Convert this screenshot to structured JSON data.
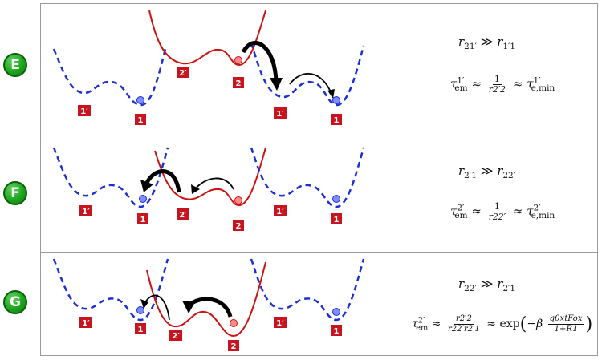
{
  "panels": [
    {
      "label": "E",
      "condition": "r21′ ≫ r1′1",
      "condition_parts": {
        "lhs": "r",
        "lhs_sub": "21′",
        "op": "≫",
        "rhs": "r",
        "rhs_sub": "1′1"
      },
      "tau_sup": "1′",
      "frac_num": "1",
      "frac_den": "r2′2",
      "approx_rhs_sup": "1′",
      "approx_rhs_sub": "e,min",
      "well_labels": [
        "1′",
        "1",
        "2′",
        "2",
        "1′",
        "1"
      ]
    },
    {
      "label": "F",
      "condition_parts": {
        "lhs": "r",
        "lhs_sub": "2′1",
        "op": "≫",
        "rhs": "r",
        "rhs_sub": "22′"
      },
      "tau_sup": "2′",
      "frac_num": "1",
      "frac_den": "r22′",
      "approx_rhs_sup": "2′",
      "approx_rhs_sub": "e,min",
      "well_labels": [
        "1′",
        "1",
        "2′",
        "2",
        "1′",
        "1"
      ]
    },
    {
      "label": "G",
      "condition_parts": {
        "lhs": "r",
        "lhs_sub": "22′",
        "op": "≫",
        "rhs": "r",
        "rhs_sub": "2′1"
      },
      "tau_sup": "2′",
      "frac_num": "r2′2",
      "frac_den": "r22′r2′1",
      "exp_text": "exp",
      "exp_frac_num": "q0xtFox",
      "exp_frac_den": "1+R1",
      "well_labels": [
        "1′",
        "1",
        "2′",
        "2",
        "1′",
        "1"
      ]
    }
  ],
  "symbols": {
    "tau": "τ",
    "em": "em",
    "approx": "≈",
    "beta": "β",
    "minus": "−"
  },
  "colors": {
    "red_curve": "#cc1111",
    "blue_curve": "#1a2fd6",
    "label_bg": "#c8141e",
    "badge": "#1ea51e"
  }
}
